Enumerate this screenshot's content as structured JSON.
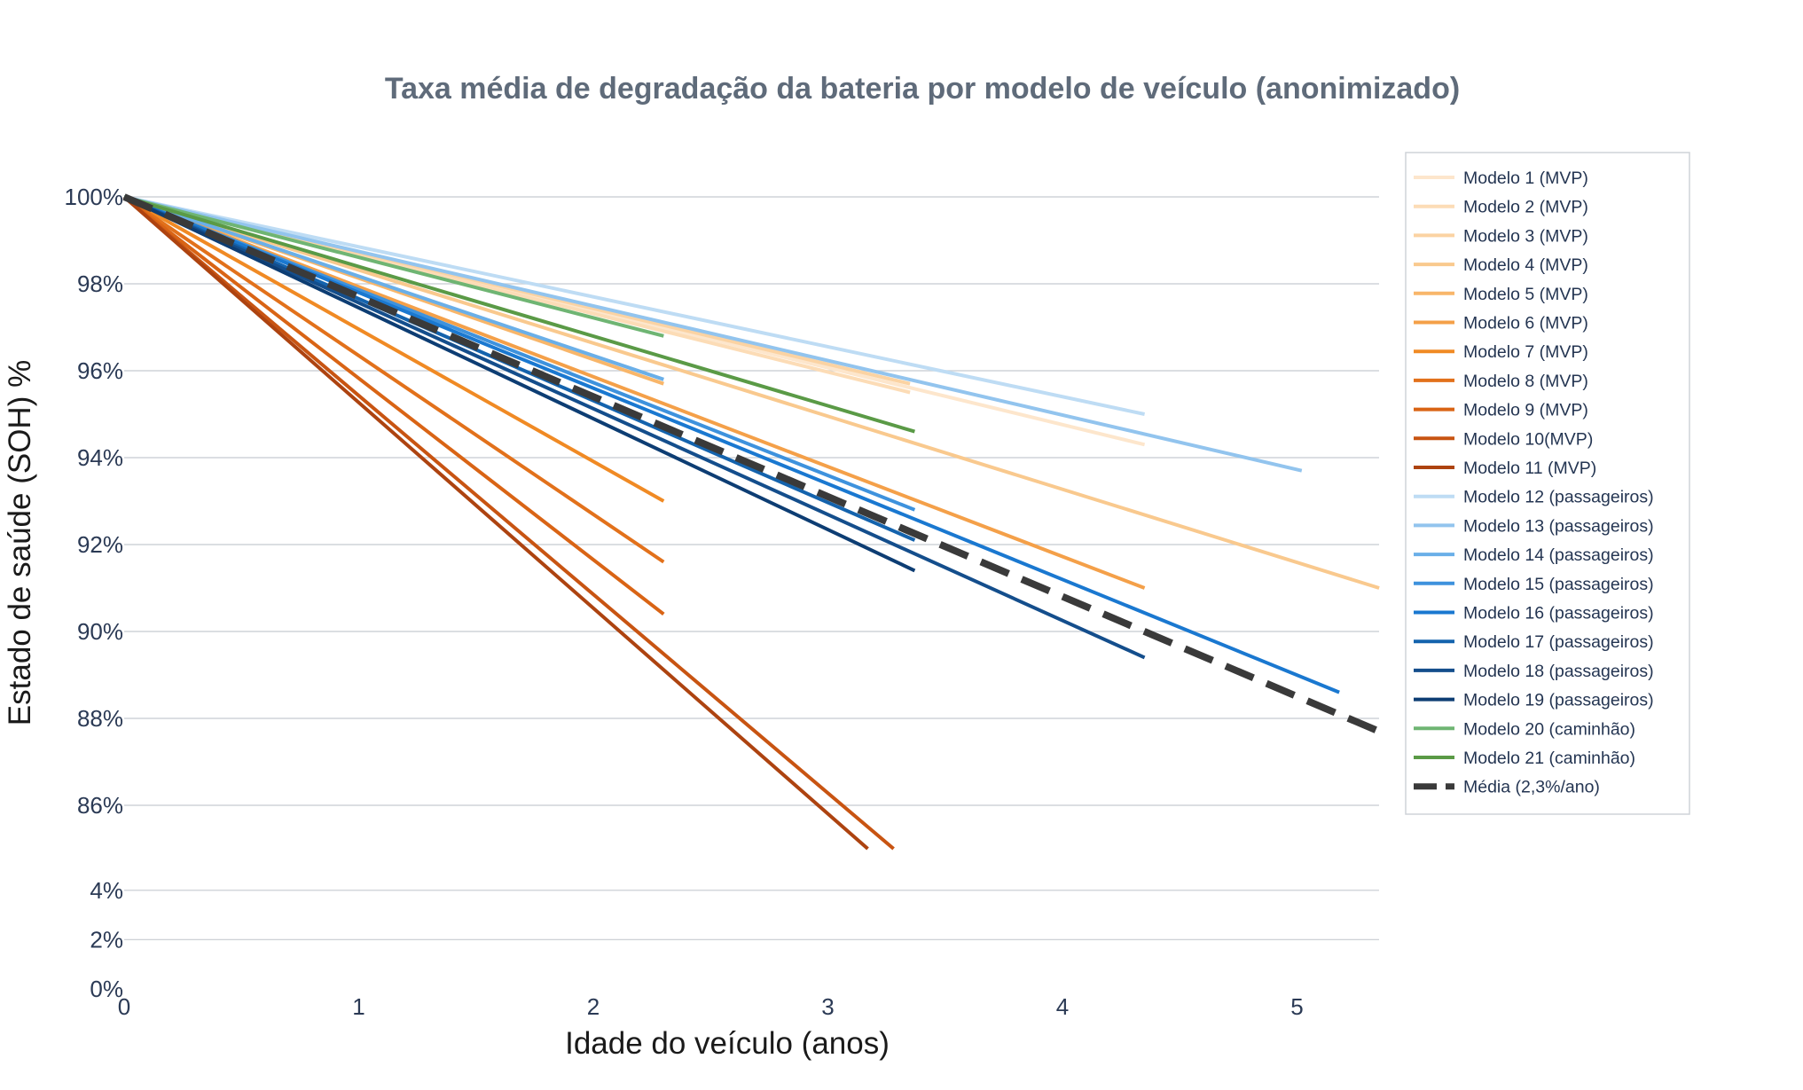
{
  "chart_data": {
    "type": "line",
    "title": "Taxa média de degradação da bateria por modelo de veículo (anonimizado)",
    "xlabel": "Idade do veículo (anos)",
    "ylabel": "Estado de saúde (SOH) %",
    "xlim": [
      0,
      5.35
    ],
    "ylim": [
      0,
      100
    ],
    "axis_break": "between 4% and 86%",
    "x_ticks": [
      "0",
      "1",
      "2",
      "3",
      "4",
      "5"
    ],
    "y_ticks": [
      "0%",
      "2%",
      "4%",
      "86%",
      "88%",
      "90%",
      "92%",
      "94%",
      "96%",
      "98%",
      "100%"
    ],
    "grid": true,
    "legend_position": "right",
    "series": [
      {
        "name": "Modelo 1 (MVP)",
        "color": "#fde6cc",
        "x": [
          0,
          4.35
        ],
        "y": [
          100,
          94.3
        ]
      },
      {
        "name": "Modelo 2 (MVP)",
        "color": "#fcdcb6",
        "x": [
          0,
          3.35
        ],
        "y": [
          100,
          95.5
        ]
      },
      {
        "name": "Modelo 3 (MVP)",
        "color": "#fbd3a3",
        "x": [
          0,
          3.35
        ],
        "y": [
          100,
          95.7
        ]
      },
      {
        "name": "Modelo 4 (MVP)",
        "color": "#f9c98e",
        "x": [
          0,
          5.35
        ],
        "y": [
          100,
          91.0
        ]
      },
      {
        "name": "Modelo 5 (MVP)",
        "color": "#f8b66a",
        "x": [
          0,
          2.3
        ],
        "y": [
          100,
          95.7
        ]
      },
      {
        "name": "Modelo 6 (MVP)",
        "color": "#f4a049",
        "x": [
          0,
          4.35
        ],
        "y": [
          100,
          91.0
        ]
      },
      {
        "name": "Modelo 7 (MVP)",
        "color": "#f08a24",
        "x": [
          0,
          2.3
        ],
        "y": [
          100,
          93.0
        ]
      },
      {
        "name": "Modelo 8 (MVP)",
        "color": "#e2711b",
        "x": [
          0,
          2.3
        ],
        "y": [
          100,
          91.6
        ]
      },
      {
        "name": "Modelo 9 (MVP)",
        "color": "#d96415",
        "x": [
          0,
          2.3
        ],
        "y": [
          100,
          90.4
        ]
      },
      {
        "name": "Modelo 10(MVP)",
        "color": "#c85412",
        "x": [
          0,
          3.28
        ],
        "y": [
          100,
          85.0
        ]
      },
      {
        "name": "Modelo 11 (MVP)",
        "color": "#ad4310",
        "x": [
          0,
          3.17
        ],
        "y": [
          100,
          85.0
        ]
      },
      {
        "name": "Modelo 12 (passageiros)",
        "color": "#bedcf4",
        "x": [
          0,
          4.35
        ],
        "y": [
          100,
          95.0
        ]
      },
      {
        "name": "Modelo 13 (passageiros)",
        "color": "#92c4ee",
        "x": [
          0,
          5.02
        ],
        "y": [
          100,
          93.7
        ]
      },
      {
        "name": "Modelo 14 (passageiros)",
        "color": "#6aafe8",
        "x": [
          0,
          2.3
        ],
        "y": [
          100,
          95.8
        ]
      },
      {
        "name": "Modelo 15 (passageiros)",
        "color": "#3e92dd",
        "x": [
          0,
          3.37
        ],
        "y": [
          100,
          92.8
        ]
      },
      {
        "name": "Modelo 16 (passageiros)",
        "color": "#1a78d0",
        "x": [
          0,
          5.18
        ],
        "y": [
          100,
          88.6
        ]
      },
      {
        "name": "Modelo 17 (passageiros)",
        "color": "#1463ad",
        "x": [
          0,
          3.37
        ],
        "y": [
          100,
          92.1
        ]
      },
      {
        "name": "Modelo 18 (passageiros)",
        "color": "#144e8c",
        "x": [
          0,
          4.35
        ],
        "y": [
          100,
          89.4
        ]
      },
      {
        "name": "Modelo 19 (passageiros)",
        "color": "#0d3d73",
        "x": [
          0,
          3.37
        ],
        "y": [
          100,
          91.4
        ]
      },
      {
        "name": "Modelo 20 (caminhão)",
        "color": "#6fb573",
        "x": [
          0,
          2.3
        ],
        "y": [
          100,
          96.8
        ]
      },
      {
        "name": "Modelo 21 (caminhão)",
        "color": "#5a9a46",
        "x": [
          0,
          3.37
        ],
        "y": [
          100,
          94.6
        ]
      },
      {
        "name": "Média (2,3%/ano)",
        "color": "#3a3a3a",
        "dashed": true,
        "x": [
          0,
          5.35
        ],
        "y": [
          100,
          87.7
        ]
      }
    ]
  }
}
